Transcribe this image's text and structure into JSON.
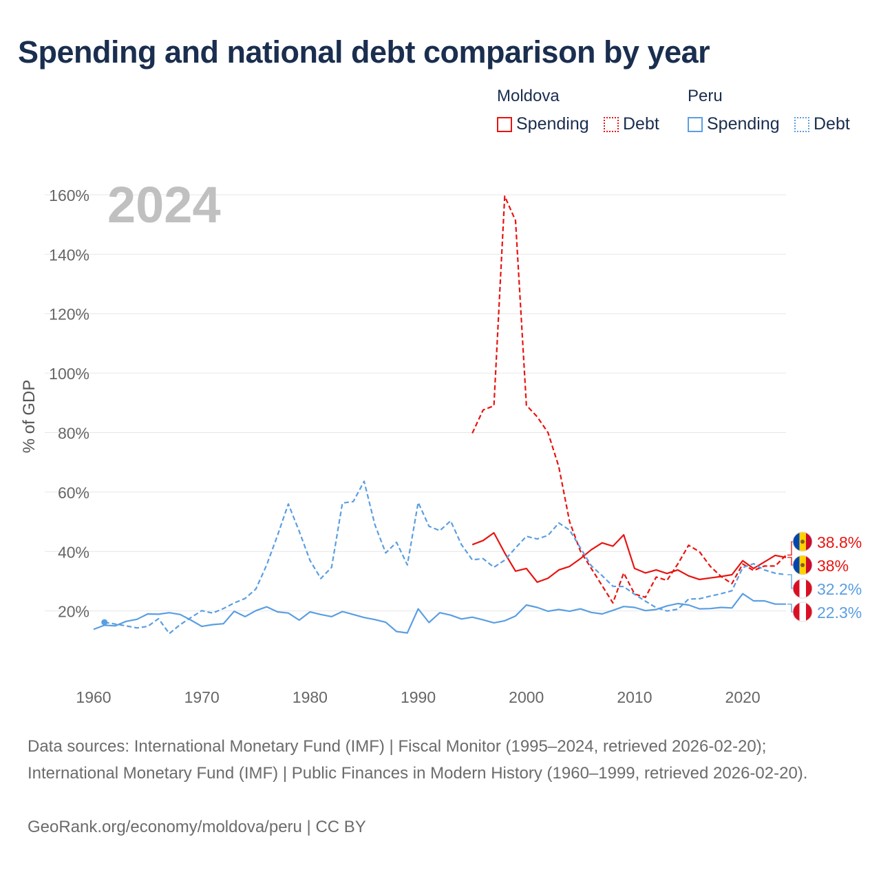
{
  "title": "Spending and national debt comparison by year",
  "legend": {
    "groups": [
      {
        "country": "Moldova",
        "color": "#e8130f",
        "items": [
          {
            "label": "Spending",
            "style": "solid"
          },
          {
            "label": "Debt",
            "style": "dotted"
          }
        ]
      },
      {
        "country": "Peru",
        "color": "#5a9ee2",
        "items": [
          {
            "label": "Spending",
            "style": "solid"
          },
          {
            "label": "Debt",
            "style": "dotted"
          }
        ]
      }
    ]
  },
  "chart_data": {
    "type": "line",
    "ylabel": "% of GDP",
    "ylim": [
      -3,
      163
    ],
    "xlim": [
      1960,
      2024
    ],
    "yticks": [
      20,
      40,
      60,
      80,
      100,
      120,
      140,
      160
    ],
    "ytick_labels": [
      "20%",
      "40%",
      "60%",
      "80%",
      "100%",
      "120%",
      "140%",
      "160%"
    ],
    "xticks": [
      1960,
      1970,
      1980,
      1990,
      2000,
      2010,
      2020
    ],
    "xtick_labels": [
      "1960",
      "1970",
      "1980",
      "1990",
      "2000",
      "2010",
      "2020"
    ],
    "year_watermark": "2024",
    "series": [
      {
        "name": "Moldova Spending",
        "country": "Moldova",
        "kind": "spending",
        "color": "#e8130f",
        "start_year": 1995,
        "values": [
          42.3,
          43.7,
          46.3,
          39.5,
          33.4,
          34.3,
          29.7,
          31.0,
          33.8,
          35.0,
          37.6,
          40.6,
          42.9,
          41.8,
          45.6,
          34.3,
          32.8,
          33.8,
          32.6,
          33.8,
          31.8,
          30.6,
          31.1,
          31.6,
          32.2,
          36.9,
          34.3,
          36.5,
          38.7,
          38.0
        ]
      },
      {
        "name": "Moldova Debt",
        "country": "Moldova",
        "kind": "debt",
        "color": "#e8130f",
        "start_year": 1995,
        "values": [
          79.8,
          87.6,
          89.0,
          159.5,
          151.3,
          89.2,
          85.3,
          80.0,
          68.5,
          50.0,
          40.1,
          34.3,
          28.5,
          22.7,
          32.8,
          25.7,
          24.6,
          31.4,
          30.3,
          35.8,
          42.1,
          39.9,
          35.0,
          31.6,
          29.2,
          35.8,
          33.6,
          35.1,
          35.1,
          38.8
        ]
      },
      {
        "name": "Peru Spending",
        "country": "Peru",
        "kind": "spending",
        "color": "#5a9ee2",
        "start_year": 1960,
        "values": [
          13.8,
          15.2,
          15.0,
          16.5,
          17.2,
          19.0,
          18.9,
          19.4,
          18.8,
          16.9,
          14.8,
          15.4,
          15.7,
          19.9,
          18.1,
          20.1,
          21.4,
          19.7,
          19.3,
          16.9,
          19.7,
          18.8,
          18.1,
          19.8,
          18.8,
          17.8,
          17.1,
          16.2,
          13.1,
          12.6,
          20.7,
          16.1,
          19.4,
          18.6,
          17.3,
          17.9,
          17.0,
          16.0,
          16.7,
          18.3,
          22.0,
          21.2,
          19.9,
          20.5,
          19.9,
          20.7,
          19.5,
          19.0,
          20.2,
          21.5,
          21.2,
          20.1,
          20.5,
          21.7,
          22.5,
          22.0,
          20.7,
          20.8,
          21.2,
          21.0,
          25.8,
          23.4,
          23.4,
          22.3,
          22.3
        ]
      },
      {
        "name": "Peru Debt",
        "country": "Peru",
        "kind": "debt",
        "color": "#5a9ee2",
        "start_year": 1960,
        "values": [
          null,
          16.2,
          15.6,
          15.0,
          14.3,
          14.8,
          17.4,
          12.4,
          15.4,
          17.8,
          20.1,
          19.3,
          20.8,
          22.7,
          24.2,
          27.4,
          35.5,
          45.4,
          56.0,
          46.8,
          37.0,
          30.9,
          34.7,
          56.3,
          56.8,
          63.6,
          49.0,
          39.5,
          43.1,
          35.5,
          56.5,
          48.5,
          47.0,
          50.3,
          42.3,
          37.2,
          37.6,
          34.7,
          37.1,
          41.2,
          45.1,
          44.2,
          45.4,
          49.6,
          47.2,
          41.2,
          35.2,
          31.9,
          28.3,
          28.2,
          25.6,
          23.3,
          21.1,
          20.0,
          20.6,
          24.0,
          24.1,
          25.0,
          25.8,
          26.8,
          34.6,
          35.9,
          33.8,
          32.7,
          32.2
        ]
      }
    ],
    "end_labels": [
      {
        "text": "38.8%",
        "country": "Moldova",
        "color": "#e8130f"
      },
      {
        "text": "38%",
        "country": "Moldova",
        "color": "#e8130f"
      },
      {
        "text": "32.2%",
        "country": "Peru",
        "color": "#5a9ee2"
      },
      {
        "text": "22.3%",
        "country": "Peru",
        "color": "#5a9ee2"
      }
    ],
    "start_marker": {
      "year": 1961,
      "value": 16.2,
      "color": "#5a9ee2"
    }
  },
  "footer": {
    "sources": "Data sources: International Monetary Fund (IMF) | Fiscal Monitor (1995–2024, retrieved 2026-02-20); International Monetary Fund (IMF) | Public Finances in Modern History (1960–1999, retrieved 2026-02-20).",
    "credit": "GeoRank.org/economy/moldova/peru | CC BY"
  }
}
